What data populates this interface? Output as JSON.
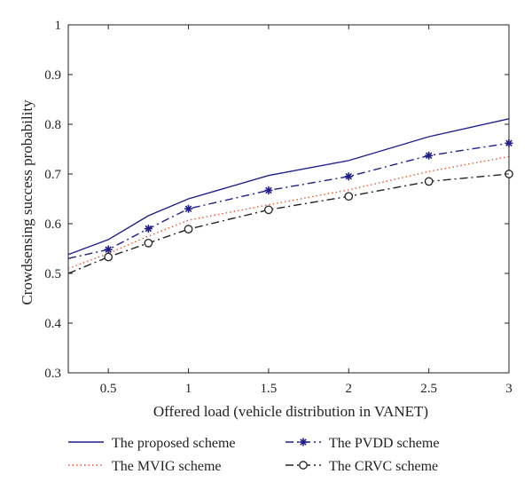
{
  "chart_data": {
    "type": "line",
    "title": "",
    "xlabel": "Offered load (vehicle distribution in VANET)",
    "ylabel": "Crowdsensing success probability",
    "xlim": [
      0.25,
      3
    ],
    "ylim": [
      0.3,
      1
    ],
    "xticks": [
      0.5,
      1,
      1.5,
      2,
      2.5,
      3
    ],
    "xtick_labels": [
      "0.5",
      "1",
      "1.5",
      "2",
      "2.5",
      "3"
    ],
    "yticks": [
      0.3,
      0.4,
      0.5,
      0.6,
      0.7,
      0.8,
      0.9,
      1
    ],
    "ytick_labels": [
      "0.3",
      "0.4",
      "0.5",
      "0.6",
      "0.7",
      "0.8",
      "0.9",
      "1"
    ],
    "grid": false,
    "legend_position": "bottom",
    "series": [
      {
        "name": "The proposed scheme",
        "color": "#1f1f8c",
        "style": "solid",
        "marker": "none",
        "x": [
          0.25,
          0.5,
          0.75,
          1,
          1.5,
          2,
          2.5,
          3
        ],
        "y": [
          0.538,
          0.568,
          0.616,
          0.65,
          0.697,
          0.727,
          0.775,
          0.811
        ]
      },
      {
        "name": "The PVDD scheme",
        "color": "#1f1f8c",
        "style": "dashdot",
        "marker": "star",
        "x": [
          0.25,
          0.5,
          0.75,
          1,
          1.5,
          2,
          2.5,
          3
        ],
        "y": [
          0.53,
          0.548,
          0.59,
          0.63,
          0.667,
          0.695,
          0.737,
          0.762
        ]
      },
      {
        "name": "The MVIG scheme",
        "color": "#e8572a",
        "style": "dotted",
        "marker": "none",
        "x": [
          0.25,
          0.5,
          0.75,
          1,
          1.5,
          2,
          2.5,
          3
        ],
        "y": [
          0.51,
          0.54,
          0.575,
          0.607,
          0.638,
          0.668,
          0.705,
          0.735
        ]
      },
      {
        "name": "The CRVC scheme",
        "color": "#222222",
        "style": "dashdot",
        "marker": "circle",
        "x": [
          0.25,
          0.5,
          0.75,
          1,
          1.5,
          2,
          2.5,
          3
        ],
        "y": [
          0.5,
          0.533,
          0.561,
          0.589,
          0.628,
          0.655,
          0.685,
          0.7
        ]
      }
    ]
  }
}
